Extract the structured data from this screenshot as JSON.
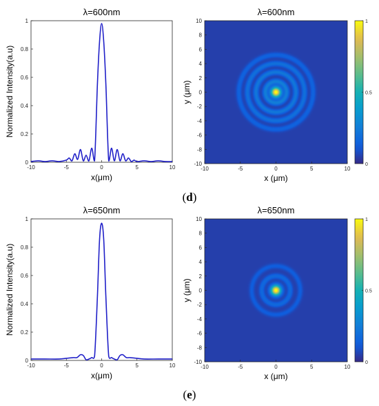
{
  "chart_data": [
    {
      "panel": "d",
      "type": "line",
      "title": "λ=600nm",
      "xlabel": "x(μm)",
      "ylabel": "Normalized Intensity(a.u)",
      "xlim": [
        -10,
        10
      ],
      "ylim": [
        0,
        1
      ],
      "xticks": [
        "-10",
        "-5",
        "0",
        "5",
        "10"
      ],
      "yticks": [
        "0",
        "0.2",
        "0.4",
        "0.6",
        "0.8",
        "1"
      ],
      "color": "#1f1fc8",
      "series": [
        {
          "x": [
            -10,
            -9,
            -8,
            -7,
            -6,
            -5,
            -4.6,
            -4.2,
            -3.8,
            -3.4,
            -3.0,
            -2.6,
            -2.2,
            -1.8,
            -1.4,
            -1.0,
            -0.6,
            -0.3,
            0,
            0.3,
            0.6,
            1.0,
            1.4,
            1.8,
            2.2,
            2.6,
            3.0,
            3.4,
            3.8,
            4.2,
            4.6,
            5,
            6,
            7,
            8,
            9,
            10
          ],
          "y": [
            0.005,
            0.01,
            0.005,
            0.01,
            0.005,
            0.015,
            0.03,
            0.01,
            0.06,
            0.02,
            0.09,
            0.01,
            0.05,
            0.01,
            0.1,
            0.01,
            0.55,
            0.85,
            0.98,
            0.85,
            0.55,
            0.01,
            0.1,
            0.01,
            0.09,
            0.01,
            0.06,
            0.01,
            0.03,
            0.005,
            0.015,
            0.005,
            0.01,
            0.005,
            0.01,
            0.005,
            0.005
          ]
        }
      ]
    },
    {
      "panel": "d",
      "type": "heatmap",
      "title": "λ=600nm",
      "xlabel": "x (μm)",
      "ylabel": "y (μm)",
      "xlim": [
        -10,
        10
      ],
      "ylim": [
        -10,
        10
      ],
      "xticks": [
        "-10",
        "-5",
        "0",
        "5",
        "10"
      ],
      "yticks": [
        "-10",
        "-8",
        "-6",
        "-4",
        "-2",
        "0",
        "2",
        "4",
        "6",
        "8",
        "10"
      ],
      "colorbar": {
        "range": [
          0,
          1
        ],
        "ticks": [
          "0",
          "0.5",
          "1"
        ],
        "colormap": "parula"
      },
      "pattern": {
        "center_peak": 1,
        "rings": [
          {
            "radius": 1.5,
            "level": 0.2
          },
          {
            "radius": 2.8,
            "level": 0.18
          },
          {
            "radius": 4.0,
            "level": 0.15
          },
          {
            "radius": 5.2,
            "level": 0.1
          }
        ],
        "background": 0.05
      }
    },
    {
      "panel": "e",
      "type": "line",
      "title": "λ=650nm",
      "xlabel": "x(μm)",
      "ylabel": "Normalized Intensity(a.u)",
      "xlim": [
        -10,
        10
      ],
      "ylim": [
        0,
        1
      ],
      "xticks": [
        "-10",
        "-5",
        "0",
        "5",
        "10"
      ],
      "yticks": [
        "0",
        "0.2",
        "0.4",
        "0.6",
        "0.8",
        "1"
      ],
      "color": "#1f1fc8",
      "series": [
        {
          "x": [
            -10,
            -8,
            -6,
            -5,
            -4,
            -3.5,
            -3.0,
            -2.6,
            -2.2,
            -1.8,
            -1.4,
            -1.0,
            -0.6,
            -0.3,
            0,
            0.3,
            0.6,
            1.0,
            1.4,
            1.8,
            2.2,
            2.6,
            3.0,
            3.5,
            4,
            5,
            6,
            8,
            10
          ],
          "y": [
            0.01,
            0.01,
            0.01,
            0.015,
            0.02,
            0.02,
            0.04,
            0.035,
            0.005,
            0.01,
            0.02,
            0.03,
            0.45,
            0.85,
            0.97,
            0.85,
            0.45,
            0.03,
            0.02,
            0.01,
            0.005,
            0.035,
            0.04,
            0.02,
            0.02,
            0.015,
            0.01,
            0.01,
            0.01
          ]
        }
      ]
    },
    {
      "panel": "e",
      "type": "heatmap",
      "title": "λ=650nm",
      "xlabel": "x (μm)",
      "ylabel": "y (μm)",
      "xlim": [
        -10,
        10
      ],
      "ylim": [
        -10,
        10
      ],
      "xticks": [
        "-10",
        "-5",
        "0",
        "5",
        "10"
      ],
      "yticks": [
        "-10",
        "-8",
        "-6",
        "-4",
        "-2",
        "0",
        "2",
        "4",
        "6",
        "8",
        "10"
      ],
      "colorbar": {
        "range": [
          0,
          1
        ],
        "ticks": [
          "0",
          "0.5",
          "1"
        ],
        "colormap": "parula"
      },
      "pattern": {
        "center_peak": 1,
        "rings": [
          {
            "radius": 2.0,
            "level": 0.12
          },
          {
            "radius": 3.4,
            "level": 0.08
          }
        ],
        "background": 0.05
      }
    }
  ],
  "captions": [
    {
      "label": "d"
    },
    {
      "label": "e"
    }
  ]
}
